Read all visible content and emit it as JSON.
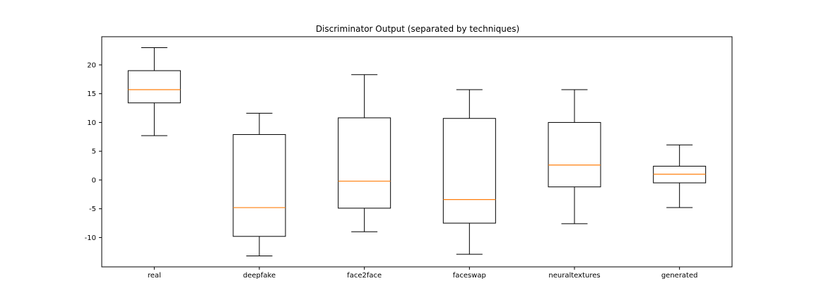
{
  "chart_data": {
    "type": "box",
    "title": "Discriminator Output (separated by techniques)",
    "xlabel": "",
    "ylabel": "",
    "ylim": [
      -15.1,
      24.9
    ],
    "yticks": [
      -10,
      -5,
      0,
      5,
      10,
      15,
      20
    ],
    "grid": false,
    "categories": [
      "real",
      "deepfake",
      "face2face",
      "faceswap",
      "neuraltextures",
      "generated"
    ],
    "boxes": [
      {
        "label": "real",
        "whisker_low": 7.7,
        "q1": 13.4,
        "median": 15.7,
        "q3": 19.0,
        "whisker_high": 23.0
      },
      {
        "label": "deepfake",
        "whisker_low": -13.2,
        "q1": -9.8,
        "median": -4.8,
        "q3": 7.9,
        "whisker_high": 11.6
      },
      {
        "label": "face2face",
        "whisker_low": -9.0,
        "q1": -4.9,
        "median": -0.2,
        "q3": 10.8,
        "whisker_high": 18.3
      },
      {
        "label": "faceswap",
        "whisker_low": -12.9,
        "q1": -7.5,
        "median": -3.4,
        "q3": 10.7,
        "whisker_high": 15.7
      },
      {
        "label": "neuraltextures",
        "whisker_low": -7.6,
        "q1": -1.2,
        "median": 2.6,
        "q3": 10.0,
        "whisker_high": 15.7
      },
      {
        "label": "generated",
        "whisker_low": -4.8,
        "q1": -0.5,
        "median": 1.0,
        "q3": 2.4,
        "whisker_high": 6.1
      }
    ],
    "colors": {
      "box": "#000000",
      "median": "#ff7f0e",
      "axes": "#000000"
    }
  }
}
